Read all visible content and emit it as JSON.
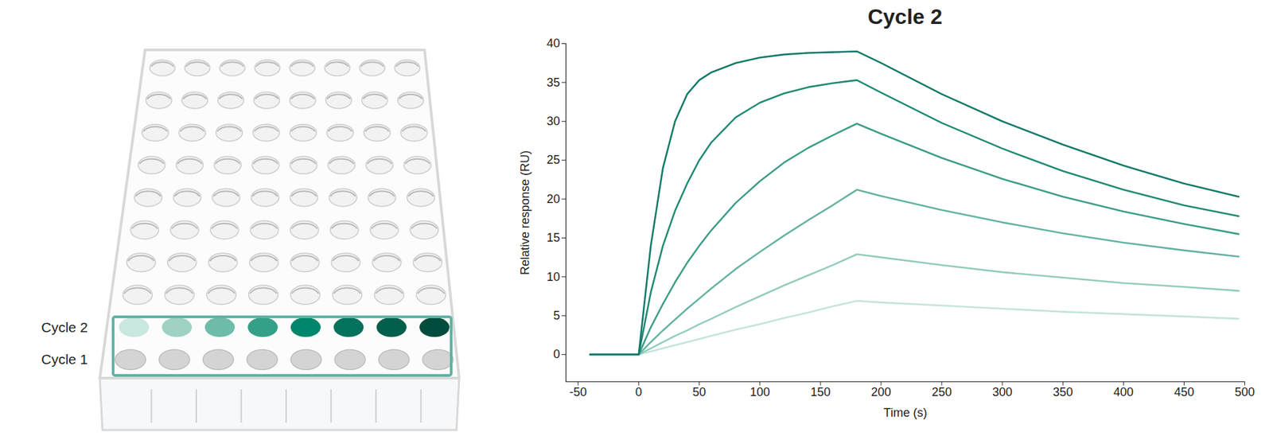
{
  "chart_data": {
    "type": "line",
    "title": "Cycle 2",
    "x_label": "Time (s)",
    "y_label": "Relative response (RU)",
    "x": [
      -40,
      0,
      10,
      20,
      30,
      40,
      50,
      60,
      80,
      100,
      120,
      140,
      160,
      180,
      200,
      250,
      300,
      350,
      400,
      450,
      495
    ],
    "series": [
      {
        "color": "#c4e4da",
        "values": [
          0,
          0,
          0.4,
          0.8,
          1.2,
          1.6,
          2,
          2.4,
          3.2,
          3.9,
          4.7,
          5.4,
          6.2,
          6.9,
          6.7,
          6.3,
          5.9,
          5.5,
          5.2,
          4.9,
          4.6
        ]
      },
      {
        "color": "#93cbbd",
        "values": [
          0,
          0,
          0.8,
          1.6,
          2.4,
          3.1,
          3.9,
          4.6,
          6.1,
          7.5,
          8.9,
          10.2,
          11.5,
          12.9,
          12.5,
          11.5,
          10.6,
          9.9,
          9.2,
          8.7,
          8.2
        ]
      },
      {
        "color": "#63b3a2",
        "values": [
          0,
          0,
          1.6,
          3.1,
          4.5,
          5.9,
          7.2,
          8.5,
          11,
          13.2,
          15.3,
          17.3,
          19.2,
          21.2,
          20.4,
          18.6,
          17,
          15.6,
          14.4,
          13.4,
          12.6
        ]
      },
      {
        "color": "#3c9d88",
        "values": [
          0,
          0,
          3.5,
          6.5,
          9.3,
          11.8,
          14,
          16,
          19.5,
          22.3,
          24.7,
          26.6,
          28.2,
          29.7,
          28.4,
          25.3,
          22.6,
          20.3,
          18.4,
          16.8,
          15.5
        ]
      },
      {
        "color": "#1f8a74",
        "values": [
          0,
          0,
          8,
          14,
          18.5,
          22,
          25,
          27.3,
          30.5,
          32.4,
          33.6,
          34.4,
          34.9,
          35.3,
          33.7,
          29.8,
          26.5,
          23.6,
          21.2,
          19.2,
          17.8
        ]
      },
      {
        "color": "#107a68",
        "values": [
          0,
          0,
          14,
          24,
          30,
          33.5,
          35.3,
          36.3,
          37.5,
          38.2,
          38.6,
          38.8,
          38.9,
          39,
          37.5,
          33.5,
          30,
          27,
          24.3,
          22,
          20.3
        ]
      }
    ],
    "xlim": [
      -60,
      500
    ],
    "xticks": [
      -50,
      0,
      50,
      100,
      150,
      200,
      250,
      300,
      350,
      400,
      450,
      500
    ],
    "ylim": [
      -3.5,
      40
    ],
    "yticks": [
      0,
      5,
      10,
      15,
      20,
      25,
      30,
      35,
      40
    ],
    "grid": false
  },
  "plate": {
    "labels": [
      "Cycle 2",
      "Cycle 1"
    ],
    "cycle_2_well_colors": [
      "#c8e7de",
      "#9fd2c4",
      "#6fbcaa",
      "#35a088",
      "#00866a",
      "#04725c",
      "#025f4b",
      "#014d3d"
    ],
    "cycle_1_well_color": "#d4d4d4"
  }
}
